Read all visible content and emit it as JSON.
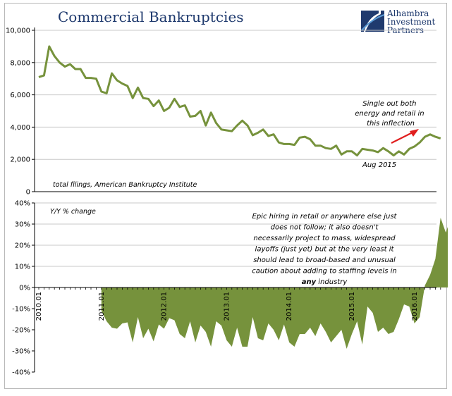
{
  "logo": {
    "lines": [
      "Alhambra",
      "Investment",
      "Partners"
    ],
    "colors": {
      "navy": "#1f3a6e",
      "blue": "#5b9bd5"
    }
  },
  "colors": {
    "series": "#76923c",
    "arrow": "#e01e1e",
    "grid": "#c8c8c8"
  },
  "chart_data": [
    {
      "type": "line",
      "title": "Commercial Bankruptcies",
      "note": "total filings, American Bankruptcy Institute",
      "ylim": [
        0,
        10000
      ],
      "yticks": [
        0,
        2000,
        4000,
        6000,
        8000,
        10000
      ],
      "ytick_labels": [
        "0",
        "2,000",
        "4,000",
        "6,000",
        "8,000",
        "10,000"
      ],
      "x_start": "2010-01",
      "y": [
        7100,
        7200,
        9000,
        8400,
        8000,
        7750,
        7900,
        7600,
        7600,
        7050,
        7050,
        7000,
        6200,
        6100,
        7330,
        6900,
        6700,
        6550,
        5800,
        6450,
        5800,
        5750,
        5300,
        5650,
        5000,
        5200,
        5750,
        5250,
        5350,
        4650,
        4700,
        5000,
        4100,
        4900,
        4250,
        3850,
        3800,
        3750,
        4100,
        4400,
        4100,
        3500,
        3650,
        3850,
        3450,
        3550,
        3050,
        2950,
        2950,
        2900,
        3350,
        3400,
        3250,
        2850,
        2850,
        2700,
        2650,
        2850,
        2300,
        2500,
        2500,
        2250,
        2650,
        2600,
        2550,
        2450,
        2700,
        2500,
        2250,
        2500,
        2300,
        2650,
        2800,
        3050,
        3400,
        3550,
        3400,
        3300
      ],
      "annotations": [
        {
          "text": [
            "Single out both",
            "energy and retail in",
            "this inflection"
          ]
        },
        {
          "text": [
            "Aug 2015"
          ]
        }
      ]
    },
    {
      "type": "area",
      "note": "Y/Y % change",
      "ylim": [
        -40,
        40
      ],
      "yticks": [
        -40,
        -30,
        -20,
        -10,
        0,
        10,
        20,
        30,
        40
      ],
      "ytick_labels": [
        "-40%",
        "-30%",
        "-20%",
        "-10%",
        "0%",
        "10%",
        "20%",
        "30%",
        "40%"
      ],
      "x_tick_labels": [
        "2010.01",
        "2011.01",
        "2012.01",
        "2013.01",
        "2014.01",
        "2015.01",
        "2016.01"
      ],
      "x_start": "2011-01",
      "y": [
        -11,
        -16,
        -19,
        -19.5,
        -17,
        -16.5,
        -26,
        -14,
        -24,
        -19.5,
        -25.5,
        -17.5,
        -19.5,
        -14.5,
        -15.5,
        -22,
        -24,
        -16,
        -26,
        -18,
        -21,
        -28,
        -16,
        -18,
        -25,
        -28,
        -19,
        -28,
        -28,
        -14,
        -24,
        -25,
        -17,
        -20,
        -25,
        -17.5,
        -26,
        -28,
        -22,
        -22,
        -19,
        -23,
        -17,
        -21,
        -26,
        -23,
        -20,
        -29,
        -22,
        -16,
        -27,
        -9,
        -12,
        -21,
        -19,
        -22,
        -21,
        -15,
        -8,
        -9,
        -17,
        -14,
        1,
        6,
        13.5,
        33,
        26,
        33,
        33,
        34.5
      ],
      "annotation": {
        "lines": [
          [
            {
              "t": "Epic hiring in retail or anywhere else just",
              "b": false
            }
          ],
          [
            {
              "t": "does not follow; it also doesn't",
              "b": false
            }
          ],
          [
            {
              "t": "necessarily project to mass, widespread",
              "b": false
            }
          ],
          [
            {
              "t": "layoffs (just yet) but at the very least it",
              "b": false
            }
          ],
          [
            {
              "t": "should lead to broad-based and unusual",
              "b": false
            }
          ],
          [
            {
              "t": "caution about adding to staffing levels in",
              "b": false
            }
          ],
          [
            {
              "t": "any",
              "b": true
            },
            {
              "t": " industry",
              "b": false
            }
          ]
        ]
      }
    }
  ]
}
